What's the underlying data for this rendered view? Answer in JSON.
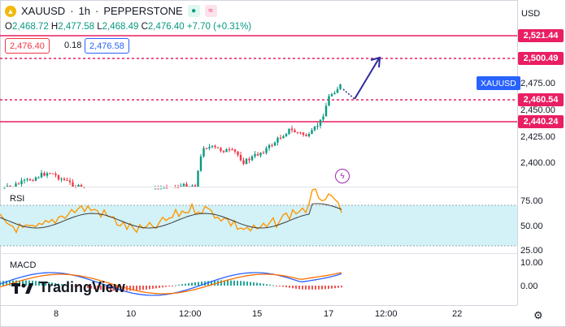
{
  "header": {
    "symbol": "XAUUSD",
    "interval": "1h",
    "broker": "PEPPERSTONE",
    "separator": "·"
  },
  "ohlc": {
    "o_label": "O",
    "o": "2,468.72",
    "h_label": "H",
    "h": "2,477.58",
    "l_label": "L",
    "l": "2,468.49",
    "c_label": "C",
    "c": "2,476.40",
    "change": "+7.70 (+0.31%)"
  },
  "price_boxes": {
    "sell": "2,476.40",
    "spread": "0.18",
    "buy": "2,476.58"
  },
  "axis": {
    "currency": "USD",
    "ticks": [
      "2,475.00",
      "2,450.00",
      "2,425.00",
      "2,400.00"
    ],
    "rsi_ticks": [
      "75.00",
      "50.00",
      "25.00"
    ],
    "macd_ticks": [
      "10.00",
      "0.00"
    ],
    "x_ticks": [
      "8",
      "10",
      "12:00",
      "15",
      "17",
      "12:00",
      "22"
    ]
  },
  "price_labels": {
    "r1": "2,521.44",
    "r2": "2,500.49",
    "s1": "2,460.54",
    "s2": "2,440.24",
    "symbol_tag": "XAUUSD"
  },
  "indicators": {
    "rsi": "RSI",
    "macd": "MACD"
  },
  "brand": {
    "name": "TradingView"
  },
  "colors": {
    "red_line": "#e91e63",
    "arrow": "#2d2a9e",
    "rsi_band": "#d2f2f8",
    "up": "#089981",
    "down": "#f23645"
  },
  "icons": {
    "bolt": "lightning-icon",
    "gear": "gear-icon"
  }
}
